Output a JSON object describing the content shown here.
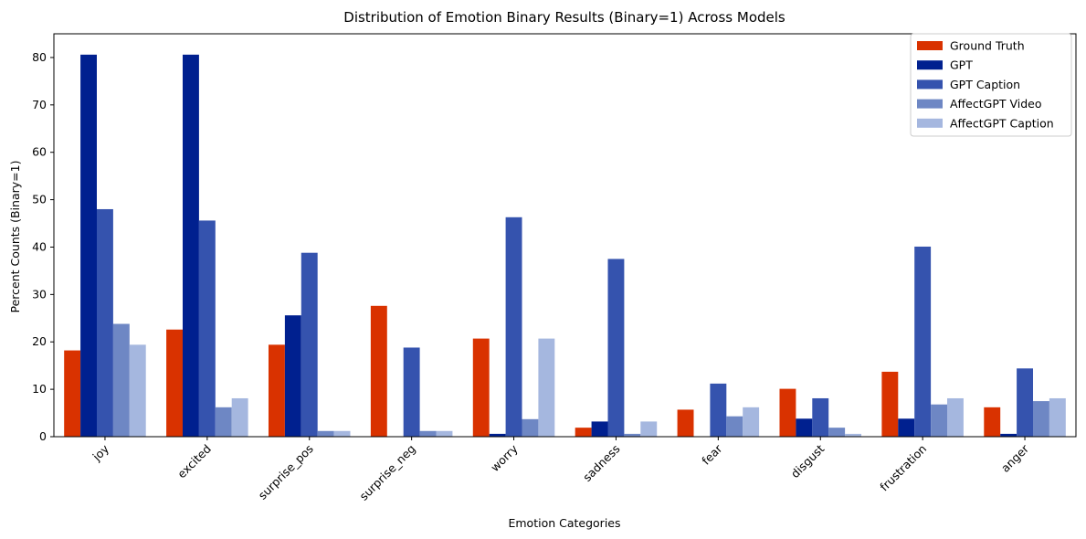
{
  "chart_data": {
    "type": "bar",
    "title": "Distribution of Emotion Binary Results (Binary=1) Across Models",
    "xlabel": "Emotion Categories",
    "ylabel": "Percent Counts (Binary=1)",
    "ylim": [
      0,
      85
    ],
    "yticks": [
      0,
      10,
      20,
      30,
      40,
      50,
      60,
      70,
      80
    ],
    "categories": [
      "joy",
      "excited",
      "surprise_pos",
      "surprise_neg",
      "worry",
      "sadness",
      "fear",
      "disgust",
      "frustration",
      "anger"
    ],
    "series": [
      {
        "name": "Ground Truth",
        "color": "#d93200",
        "values": [
          18.2,
          22.6,
          19.4,
          27.6,
          20.7,
          1.9,
          5.7,
          10.1,
          13.7,
          6.2
        ]
      },
      {
        "name": "GPT",
        "color": "#00208f",
        "values": [
          80.6,
          80.6,
          25.6,
          0,
          0.6,
          3.2,
          0,
          3.8,
          3.8,
          0.6
        ]
      },
      {
        "name": "GPT Caption",
        "color": "#3553ae",
        "values": [
          48.0,
          45.6,
          38.8,
          18.8,
          46.3,
          37.5,
          11.2,
          8.1,
          40.1,
          14.4
        ]
      },
      {
        "name": "AffectGPT Video",
        "color": "#6e87c4",
        "values": [
          23.8,
          6.2,
          1.2,
          1.2,
          3.7,
          0.6,
          4.3,
          1.9,
          6.8,
          7.5
        ]
      },
      {
        "name": "AffectGPT Caption",
        "color": "#a5b7df",
        "values": [
          19.4,
          8.1,
          1.2,
          1.2,
          20.7,
          3.2,
          6.2,
          0.6,
          8.1,
          8.1
        ]
      }
    ],
    "legend_position": "top-right",
    "grid": false
  }
}
